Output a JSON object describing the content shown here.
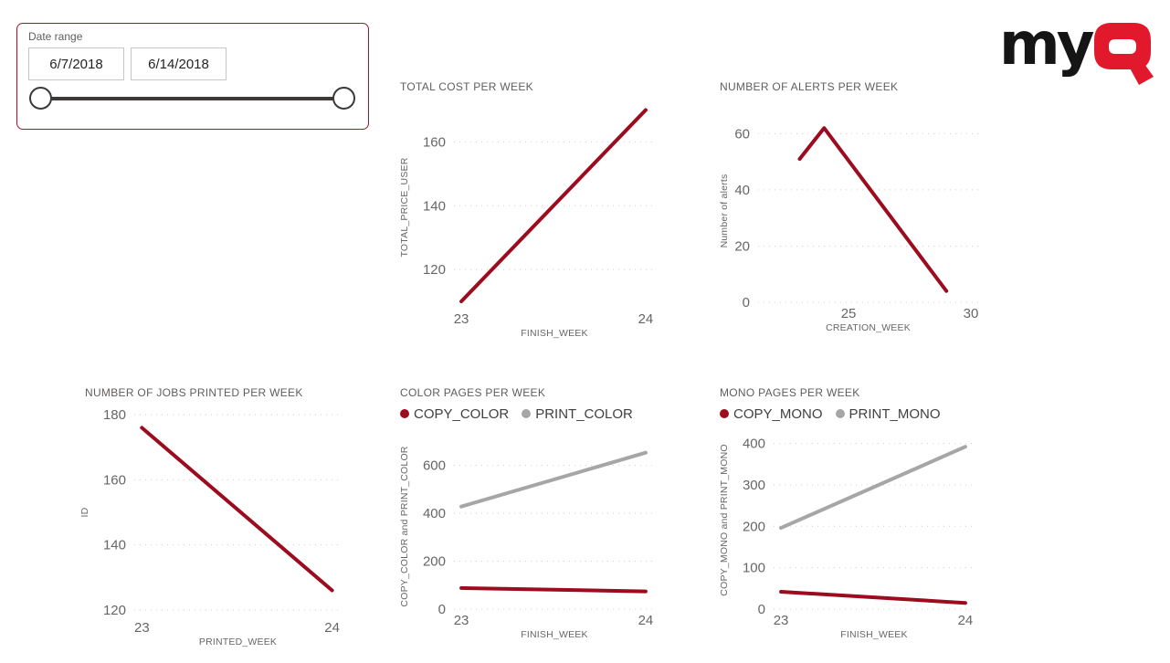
{
  "slicer": {
    "label": "Date range",
    "start_date": "6/7/2018",
    "end_date": "6/14/2018"
  },
  "logo": {
    "text_my": "my",
    "text_q": "Q"
  },
  "colors": {
    "accent_red": "#9c0b1e",
    "series_gray": "#a6a6a6",
    "slicer_border": "#a3152c",
    "logo_red": "#e2182c",
    "logo_black": "#151515"
  },
  "chart_data": [
    {
      "id": "total-cost",
      "type": "line",
      "title": "TOTAL COST PER WEEK",
      "xlabel": "FINISH_WEEK",
      "ylabel": "TOTAL_PRICE_USER",
      "xlim": [
        22.96,
        24.05
      ],
      "ylim": [
        108,
        171
      ],
      "xticks": [
        23,
        24
      ],
      "yticks": [
        120,
        140,
        160
      ],
      "grid": true,
      "legend": false,
      "series": [
        {
          "name": "TOTAL_PRICE_USER",
          "color": "#9c0b1e",
          "points": [
            [
              23,
              110
            ],
            [
              24,
              170
            ]
          ]
        }
      ]
    },
    {
      "id": "alerts",
      "type": "line",
      "title": "NUMBER OF ALERTS PER WEEK",
      "xlabel": "CREATION_WEEK",
      "ylabel": "Number of alerts",
      "xlim": [
        21.3,
        30.3
      ],
      "ylim": [
        0,
        65
      ],
      "xticks": [
        25,
        30
      ],
      "yticks": [
        0,
        20,
        40,
        60
      ],
      "grid": true,
      "legend": false,
      "series": [
        {
          "name": "Number of alerts",
          "color": "#9c0b1e",
          "points": [
            [
              23,
              51
            ],
            [
              24,
              62
            ],
            [
              29,
              4
            ]
          ]
        }
      ]
    },
    {
      "id": "jobs",
      "type": "line",
      "title": "NUMBER OF JOBS PRINTED PER WEEK",
      "xlabel": "PRINTED_WEEK",
      "ylabel": "ID",
      "xlim": [
        22.96,
        24.05
      ],
      "ylim": [
        118,
        182
      ],
      "xticks": [
        23,
        24
      ],
      "yticks": [
        120,
        140,
        160,
        180
      ],
      "grid": true,
      "legend": false,
      "series": [
        {
          "name": "ID",
          "color": "#9c0b1e",
          "points": [
            [
              23,
              176
            ],
            [
              24,
              126
            ]
          ]
        }
      ]
    },
    {
      "id": "color-pages",
      "type": "line",
      "title": "COLOR PAGES PER WEEK",
      "xlabel": "FINISH_WEEK",
      "ylabel": "COPY_COLOR and PRINT_COLOR",
      "xlim": [
        22.96,
        24.05
      ],
      "ylim": [
        0,
        690
      ],
      "xticks": [
        23,
        24
      ],
      "yticks": [
        0,
        200,
        400,
        600
      ],
      "grid": true,
      "legend": true,
      "series": [
        {
          "name": "COPY_COLOR",
          "color": "#9c0b1e",
          "points": [
            [
              23,
              88
            ],
            [
              24,
              74
            ]
          ]
        },
        {
          "name": "PRINT_COLOR",
          "color": "#a6a6a6",
          "points": [
            [
              23,
              428
            ],
            [
              24,
              653
            ]
          ]
        }
      ]
    },
    {
      "id": "mono-pages",
      "type": "line",
      "title": "MONO PAGES PER WEEK",
      "xlabel": "FINISH_WEEK",
      "ylabel": "COPY_MONO and PRINT_MONO",
      "xlim": [
        22.96,
        24.05
      ],
      "ylim": [
        0,
        430
      ],
      "xticks": [
        23,
        24
      ],
      "yticks": [
        0,
        100,
        200,
        300,
        400
      ],
      "grid": true,
      "legend": true,
      "series": [
        {
          "name": "COPY_MONO",
          "color": "#9c0b1e",
          "points": [
            [
              23,
              42
            ],
            [
              24,
              15
            ]
          ]
        },
        {
          "name": "PRINT_MONO",
          "color": "#a6a6a6",
          "points": [
            [
              23,
              196
            ],
            [
              24,
              392
            ]
          ]
        }
      ]
    }
  ]
}
